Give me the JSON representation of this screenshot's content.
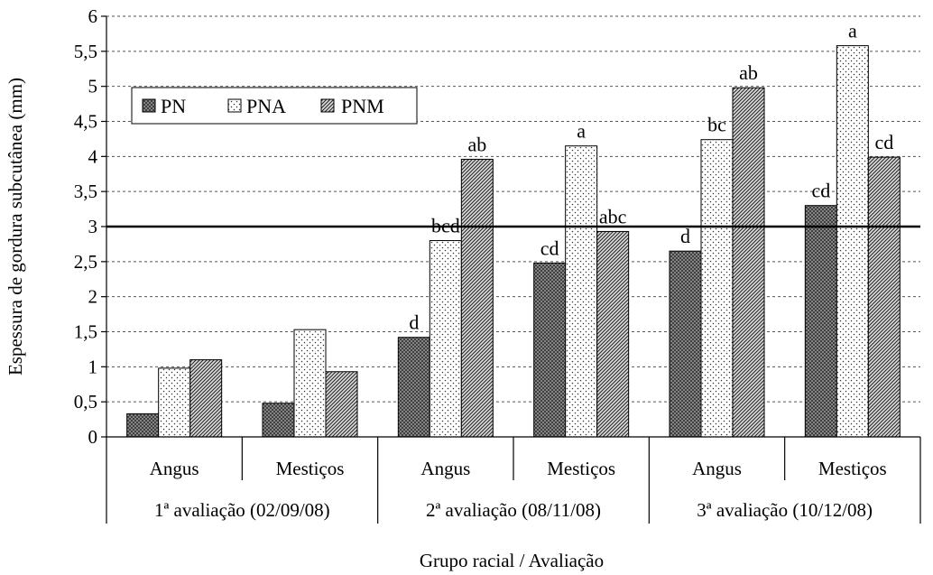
{
  "chart_data": {
    "type": "bar",
    "ylabel": "Espessura de gordura subcutânea (mm)",
    "xlabel": "Grupo racial / Avaliação",
    "ylim": [
      0,
      6
    ],
    "yticks": [
      "0",
      "0,5",
      "1",
      "1,5",
      "2",
      "2,5",
      "3",
      "3,5",
      "4",
      "4,5",
      "5",
      "5,5",
      "6"
    ],
    "grid": true,
    "reference_line": 3,
    "legend_position": "top-left",
    "groups": [
      {
        "label": "1ª avaliação (02/09/08)",
        "categories": [
          "Angus",
          "Mestiços"
        ]
      },
      {
        "label": "2ª avaliação (08/11/08)",
        "categories": [
          "Angus",
          "Mestiços"
        ]
      },
      {
        "label": "3ª avaliação (10/12/08)",
        "categories": [
          "Angus",
          "Mestiços"
        ]
      }
    ],
    "series": [
      {
        "name": "PN",
        "pattern": "crosshatch-dark",
        "values": [
          0.33,
          0.48,
          1.42,
          2.48,
          2.65,
          3.3
        ],
        "labels": [
          "",
          "",
          "d",
          "cd",
          "d",
          "cd"
        ]
      },
      {
        "name": "PNA",
        "pattern": "dots",
        "values": [
          0.98,
          1.53,
          2.8,
          4.15,
          4.24,
          5.58
        ],
        "labels": [
          "",
          "",
          "bcd",
          "a",
          "bc",
          "a"
        ]
      },
      {
        "name": "PNM",
        "pattern": "diagonal",
        "values": [
          1.1,
          0.93,
          3.96,
          2.93,
          4.98,
          3.99
        ],
        "labels": [
          "",
          "",
          "ab",
          "abc",
          "ab",
          "cd"
        ]
      }
    ]
  },
  "colors": {
    "pn_fill": "#8a8a8a",
    "line": "#000000"
  }
}
